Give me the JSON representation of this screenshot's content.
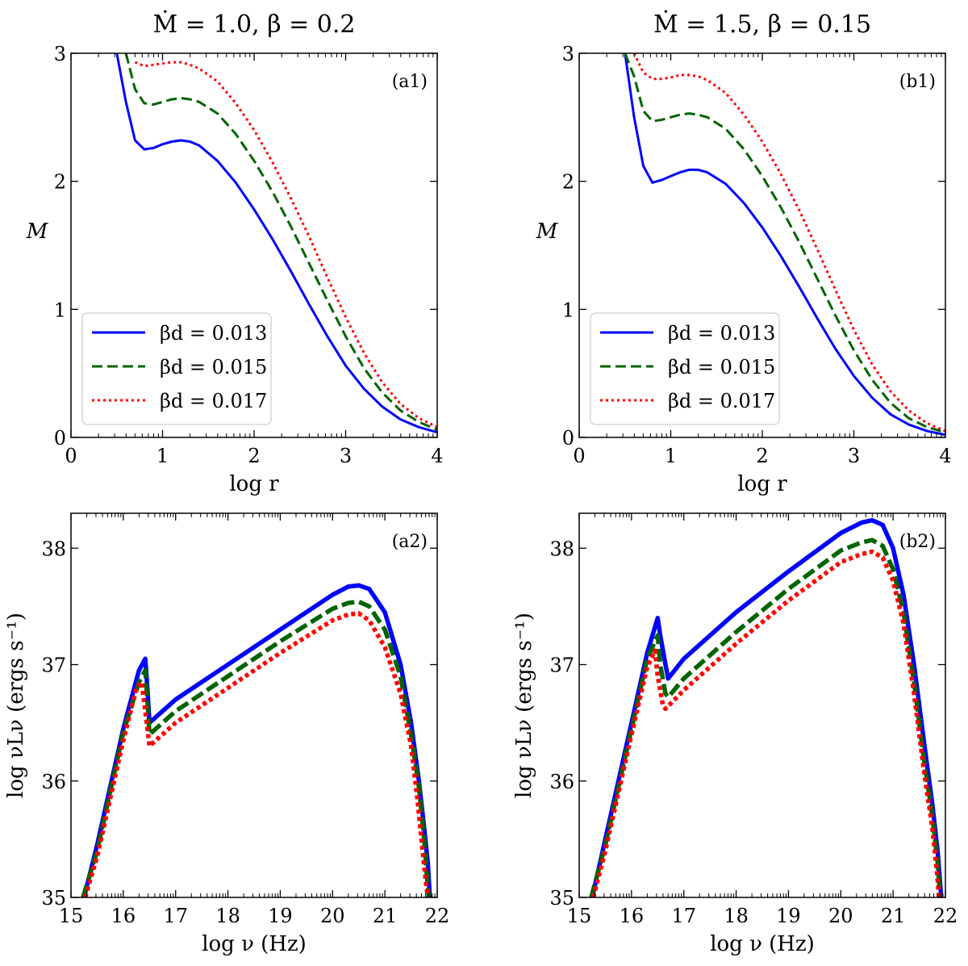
{
  "colors": {
    "blue": "#0000ff",
    "green": "#006400",
    "red": "#ff0000"
  },
  "chart_data": [
    {
      "type": "line",
      "panel": "(a1)",
      "title": "Ṁ = 1.0, β = 0.2",
      "xlabel": "log r",
      "ylabel": "M",
      "xlim": [
        0,
        4
      ],
      "ylim": [
        0,
        3
      ],
      "xticks": [
        "0",
        "1",
        "2",
        "3",
        "4"
      ],
      "yticks": [
        "0",
        "1",
        "2",
        "3"
      ],
      "legend_position": "lower-left",
      "series": [
        {
          "name": "βd = 0.013",
          "color": "#0000ff",
          "style": "solid",
          "x": [
            0.5,
            0.6,
            0.7,
            0.8,
            0.9,
            1.0,
            1.1,
            1.2,
            1.3,
            1.4,
            1.6,
            1.8,
            2.0,
            2.2,
            2.4,
            2.6,
            2.8,
            3.0,
            3.2,
            3.4,
            3.6,
            3.8,
            4.0
          ],
          "y": [
            3.0,
            2.62,
            2.32,
            2.25,
            2.26,
            2.29,
            2.31,
            2.32,
            2.31,
            2.28,
            2.16,
            1.99,
            1.78,
            1.55,
            1.3,
            1.04,
            0.79,
            0.56,
            0.38,
            0.24,
            0.14,
            0.08,
            0.04
          ]
        },
        {
          "name": "βd = 0.015",
          "color": "#006400",
          "style": "dashed",
          "x": [
            0.6,
            0.7,
            0.8,
            0.9,
            1.0,
            1.1,
            1.2,
            1.3,
            1.4,
            1.6,
            1.8,
            2.0,
            2.2,
            2.4,
            2.6,
            2.8,
            3.0,
            3.2,
            3.4,
            3.6,
            3.8,
            4.0
          ],
          "y": [
            3.0,
            2.72,
            2.61,
            2.6,
            2.62,
            2.64,
            2.65,
            2.64,
            2.62,
            2.53,
            2.37,
            2.16,
            1.92,
            1.65,
            1.36,
            1.07,
            0.79,
            0.54,
            0.35,
            0.21,
            0.12,
            0.06
          ]
        },
        {
          "name": "βd = 0.017",
          "color": "#ff0000",
          "style": "dotted",
          "x": [
            0.7,
            0.8,
            0.9,
            1.0,
            1.1,
            1.2,
            1.3,
            1.4,
            1.6,
            1.8,
            2.0,
            2.2,
            2.4,
            2.6,
            2.8,
            3.0,
            3.2,
            3.4,
            3.6,
            3.8,
            4.0
          ],
          "y": [
            2.93,
            2.9,
            2.91,
            2.92,
            2.93,
            2.93,
            2.91,
            2.88,
            2.78,
            2.61,
            2.4,
            2.15,
            1.87,
            1.57,
            1.25,
            0.94,
            0.66,
            0.43,
            0.26,
            0.15,
            0.08
          ]
        }
      ]
    },
    {
      "type": "line",
      "panel": "(b1)",
      "title": "Ṁ = 1.5, β = 0.15",
      "xlabel": "log r",
      "ylabel": "M",
      "xlim": [
        0,
        4
      ],
      "ylim": [
        0,
        3
      ],
      "xticks": [
        "0",
        "1",
        "2",
        "3",
        "4"
      ],
      "yticks": [
        "0",
        "1",
        "2",
        "3"
      ],
      "legend_position": "lower-left",
      "series": [
        {
          "name": "βd = 0.013",
          "color": "#0000ff",
          "style": "solid",
          "x": [
            0.5,
            0.6,
            0.7,
            0.8,
            0.9,
            1.0,
            1.1,
            1.2,
            1.3,
            1.4,
            1.6,
            1.8,
            2.0,
            2.2,
            2.4,
            2.6,
            2.8,
            3.0,
            3.2,
            3.4,
            3.6,
            3.8,
            4.0
          ],
          "y": [
            3.0,
            2.5,
            2.12,
            1.99,
            2.01,
            2.04,
            2.07,
            2.09,
            2.09,
            2.07,
            1.98,
            1.83,
            1.64,
            1.42,
            1.18,
            0.93,
            0.69,
            0.48,
            0.31,
            0.18,
            0.1,
            0.05,
            0.02
          ]
        },
        {
          "name": "βd = 0.015",
          "color": "#006400",
          "style": "dashed",
          "x": [
            0.5,
            0.6,
            0.7,
            0.8,
            0.9,
            1.0,
            1.1,
            1.2,
            1.3,
            1.4,
            1.6,
            1.8,
            2.0,
            2.2,
            2.4,
            2.6,
            2.8,
            3.0,
            3.2,
            3.4,
            3.6,
            3.8,
            4.0
          ],
          "y": [
            3.0,
            2.82,
            2.55,
            2.47,
            2.48,
            2.5,
            2.52,
            2.53,
            2.52,
            2.5,
            2.41,
            2.25,
            2.04,
            1.8,
            1.53,
            1.24,
            0.95,
            0.68,
            0.45,
            0.27,
            0.15,
            0.08,
            0.04
          ]
        },
        {
          "name": "βd = 0.017",
          "color": "#ff0000",
          "style": "dotted",
          "x": [
            0.6,
            0.7,
            0.8,
            0.9,
            1.0,
            1.1,
            1.2,
            1.3,
            1.4,
            1.6,
            1.8,
            2.0,
            2.2,
            2.4,
            2.6,
            2.8,
            3.0,
            3.2,
            3.4,
            3.6,
            3.8,
            4.0
          ],
          "y": [
            3.0,
            2.85,
            2.8,
            2.8,
            2.81,
            2.83,
            2.83,
            2.82,
            2.79,
            2.69,
            2.52,
            2.31,
            2.06,
            1.78,
            1.47,
            1.15,
            0.84,
            0.57,
            0.36,
            0.21,
            0.11,
            0.05
          ]
        }
      ]
    },
    {
      "type": "line",
      "panel": "(a2)",
      "title": "",
      "xlabel": "log ν (Hz)",
      "ylabel": "log νLν (ergs s⁻¹)",
      "xlim": [
        15,
        22
      ],
      "ylim": [
        35,
        38.3
      ],
      "xticks": [
        "15",
        "16",
        "17",
        "18",
        "19",
        "20",
        "21",
        "22"
      ],
      "yticks": [
        "35",
        "36",
        "37",
        "38"
      ],
      "series": [
        {
          "name": "βd = 0.013",
          "color": "#0000ff",
          "style": "solid",
          "x": [
            15.25,
            15.5,
            16.0,
            16.3,
            16.42,
            16.46,
            16.5,
            17.0,
            18.0,
            19.0,
            20.0,
            20.3,
            20.5,
            20.7,
            21.0,
            21.3,
            21.5,
            21.65,
            21.75,
            21.82,
            21.86
          ],
          "y": [
            35.0,
            35.45,
            36.45,
            36.95,
            37.05,
            36.8,
            36.5,
            36.7,
            37.0,
            37.3,
            37.6,
            37.67,
            37.68,
            37.65,
            37.45,
            37.0,
            36.5,
            36.0,
            35.6,
            35.3,
            35.0
          ]
        },
        {
          "name": "βd = 0.015",
          "color": "#006400",
          "style": "dashed",
          "x": [
            15.23,
            15.5,
            16.0,
            16.3,
            16.42,
            16.46,
            16.5,
            17.0,
            18.0,
            19.0,
            20.0,
            20.3,
            20.5,
            20.7,
            21.0,
            21.3,
            21.5,
            21.65,
            21.75,
            21.8,
            21.84
          ],
          "y": [
            35.0,
            35.4,
            36.42,
            36.85,
            36.95,
            36.7,
            36.4,
            36.6,
            36.9,
            37.2,
            37.48,
            37.53,
            37.54,
            37.5,
            37.3,
            36.9,
            36.4,
            35.95,
            35.5,
            35.2,
            35.0
          ]
        },
        {
          "name": "βd = 0.017",
          "color": "#ff0000",
          "style": "dotted",
          "x": [
            15.27,
            15.5,
            16.0,
            16.25,
            16.35,
            16.42,
            16.5,
            17.0,
            18.0,
            19.0,
            20.0,
            20.3,
            20.5,
            20.7,
            21.0,
            21.3,
            21.5,
            21.62,
            21.72,
            21.78,
            21.82
          ],
          "y": [
            35.0,
            35.35,
            36.35,
            36.8,
            36.85,
            36.6,
            36.3,
            36.5,
            36.8,
            37.1,
            37.38,
            37.43,
            37.44,
            37.38,
            37.15,
            36.75,
            36.3,
            35.85,
            35.4,
            35.15,
            35.0
          ]
        }
      ]
    },
    {
      "type": "line",
      "panel": "(b2)",
      "title": "",
      "xlabel": "log ν (Hz)",
      "ylabel": "log νLν (ergs s⁻¹)",
      "xlim": [
        15,
        22
      ],
      "ylim": [
        35,
        38.3
      ],
      "xticks": [
        "15",
        "16",
        "17",
        "18",
        "19",
        "20",
        "21",
        "22"
      ],
      "yticks": [
        "35",
        "36",
        "37",
        "38"
      ],
      "series": [
        {
          "name": "βd = 0.013",
          "color": "#0000ff",
          "style": "solid",
          "x": [
            15.25,
            15.5,
            16.0,
            16.3,
            16.5,
            16.55,
            16.65,
            16.7,
            17.0,
            18.0,
            19.0,
            20.0,
            20.4,
            20.6,
            20.8,
            21.0,
            21.2,
            21.4,
            21.6,
            21.75,
            21.85,
            21.92
          ],
          "y": [
            35.0,
            35.5,
            36.5,
            37.1,
            37.4,
            37.25,
            37.0,
            36.88,
            37.05,
            37.45,
            37.8,
            38.13,
            38.22,
            38.24,
            38.2,
            38.0,
            37.6,
            37.0,
            36.3,
            35.8,
            35.4,
            35.0
          ]
        },
        {
          "name": "βd = 0.015",
          "color": "#006400",
          "style": "dashed",
          "x": [
            15.23,
            15.5,
            16.0,
            16.3,
            16.5,
            16.55,
            16.65,
            16.7,
            17.0,
            18.0,
            19.0,
            20.0,
            20.4,
            20.6,
            20.8,
            21.0,
            21.2,
            21.4,
            21.6,
            21.75,
            21.85,
            21.9
          ],
          "y": [
            35.0,
            35.45,
            36.45,
            37.05,
            37.25,
            37.0,
            36.75,
            36.72,
            36.88,
            37.28,
            37.65,
            37.98,
            38.05,
            38.07,
            38.02,
            37.82,
            37.45,
            36.85,
            36.15,
            35.7,
            35.3,
            35.0
          ]
        },
        {
          "name": "βd = 0.017",
          "color": "#ff0000",
          "style": "dotted",
          "x": [
            15.27,
            15.5,
            16.0,
            16.3,
            16.45,
            16.5,
            16.6,
            16.65,
            17.0,
            18.0,
            19.0,
            20.0,
            20.4,
            20.6,
            20.8,
            21.0,
            21.2,
            21.4,
            21.6,
            21.75,
            21.83,
            21.88
          ],
          "y": [
            35.0,
            35.4,
            36.4,
            36.98,
            37.12,
            36.9,
            36.65,
            36.62,
            36.78,
            37.18,
            37.55,
            37.88,
            37.95,
            37.97,
            37.92,
            37.72,
            37.35,
            36.75,
            36.05,
            35.6,
            35.25,
            35.0
          ]
        }
      ]
    }
  ]
}
